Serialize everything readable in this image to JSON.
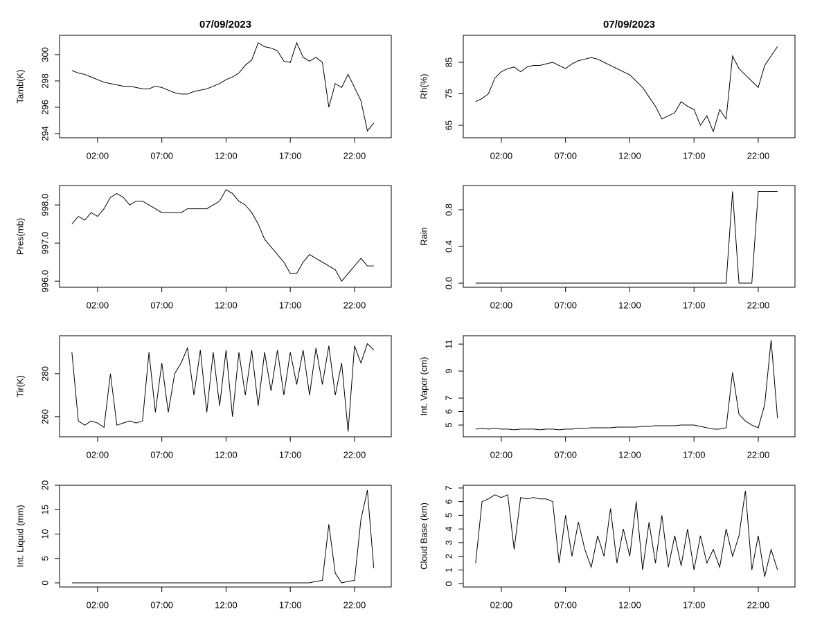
{
  "chart_data": [
    {
      "type": "line",
      "title": "07/09/2023",
      "ylabel": "Tamb(K)",
      "color": "#000000",
      "x": [
        0,
        0.5,
        1,
        1.5,
        2,
        2.5,
        3,
        3.5,
        4,
        4.5,
        5,
        5.5,
        6,
        6.5,
        7,
        7.5,
        8,
        8.5,
        9,
        9.5,
        10,
        10.5,
        11,
        11.5,
        12,
        12.5,
        13,
        13.5,
        14,
        14.5,
        15,
        15.5,
        16,
        16.5,
        17,
        17.5,
        18,
        18.5,
        19,
        19.5,
        20,
        20.5,
        21,
        21.5,
        22,
        22.5,
        23,
        23.5
      ],
      "values": [
        298.8,
        298.6,
        298.5,
        298.3,
        298.1,
        297.9,
        297.8,
        297.7,
        297.6,
        297.6,
        297.5,
        297.4,
        297.4,
        297.6,
        297.5,
        297.3,
        297.1,
        297.0,
        297.0,
        297.2,
        297.3,
        297.4,
        297.6,
        297.8,
        298.1,
        298.3,
        298.6,
        299.2,
        299.6,
        300.9,
        300.6,
        300.5,
        300.3,
        299.5,
        299.4,
        300.9,
        299.8,
        299.5,
        299.8,
        299.4,
        296.0,
        297.8,
        297.5,
        298.5,
        297.5,
        296.5,
        294.2,
        294.8
      ],
      "xlim": [
        -0.96,
        24.86
      ],
      "ylim": [
        293.68,
        301.47
      ],
      "xticks": [
        {
          "value": 2,
          "label": "02:00"
        },
        {
          "value": 7,
          "label": "07:00"
        },
        {
          "value": 12,
          "label": "12:00"
        },
        {
          "value": 17,
          "label": "17:00"
        },
        {
          "value": 22,
          "label": "22:00"
        }
      ],
      "yticks": [
        294,
        296,
        298,
        300
      ]
    },
    {
      "type": "line",
      "title": "07/09/2023",
      "ylabel": "Rh(%)",
      "color": "#000000",
      "x": [
        0,
        0.5,
        1,
        1.5,
        2,
        2.5,
        3,
        3.5,
        4,
        4.5,
        5,
        5.5,
        6,
        6.5,
        7,
        7.5,
        8,
        8.5,
        9,
        9.5,
        10,
        10.5,
        11,
        11.5,
        12,
        12.5,
        13,
        13.5,
        14,
        14.5,
        15,
        15.5,
        16,
        16.5,
        17,
        17.5,
        18,
        18.5,
        19,
        19.5,
        20,
        20.5,
        21,
        21.5,
        22,
        22.5,
        23,
        23.5
      ],
      "values": [
        72.5,
        73.5,
        75,
        80,
        82,
        83,
        83.5,
        82,
        83.5,
        84,
        84,
        84.5,
        85,
        84,
        83,
        84.5,
        85.5,
        86,
        86.5,
        86,
        85,
        84,
        83,
        82,
        81,
        79,
        77,
        74,
        71,
        67,
        68,
        69,
        72.5,
        71,
        70,
        65,
        68,
        63,
        70,
        67,
        87,
        83,
        81,
        79,
        77,
        84,
        87,
        90
      ],
      "xlim": [
        -0.96,
        24.86
      ],
      "ylim": [
        61.04,
        93.57
      ],
      "xticks": [
        {
          "value": 2,
          "label": "02:00"
        },
        {
          "value": 7,
          "label": "07:00"
        },
        {
          "value": 12,
          "label": "12:00"
        },
        {
          "value": 17,
          "label": "17:00"
        },
        {
          "value": 22,
          "label": "22:00"
        }
      ],
      "yticks": [
        65,
        75,
        85
      ]
    },
    {
      "type": "line",
      "ylabel": "Pres(mb)",
      "color": "#000000",
      "x": [
        0,
        0.5,
        1,
        1.5,
        2,
        2.5,
        3,
        3.5,
        4,
        4.5,
        5,
        5.5,
        6,
        6.5,
        7,
        7.5,
        8,
        8.5,
        9,
        9.5,
        10,
        10.5,
        11,
        11.5,
        12,
        12.5,
        13,
        13.5,
        14,
        14.5,
        15,
        15.5,
        16,
        16.5,
        17,
        17.5,
        18,
        18.5,
        19,
        19.5,
        20,
        20.5,
        21,
        21.5,
        22,
        22.5,
        23,
        23.5
      ],
      "values": [
        997.5,
        997.7,
        997.6,
        997.8,
        997.7,
        997.9,
        998.2,
        998.3,
        998.2,
        998.0,
        998.1,
        998.1,
        998.0,
        997.9,
        997.8,
        997.8,
        997.8,
        997.8,
        997.9,
        997.9,
        997.9,
        997.9,
        998.0,
        998.1,
        998.4,
        998.3,
        998.1,
        998.0,
        997.8,
        997.5,
        997.1,
        996.9,
        996.7,
        996.5,
        996.2,
        996.2,
        996.5,
        996.7,
        996.6,
        996.5,
        996.4,
        996.3,
        996.0,
        996.2,
        996.4,
        996.6,
        996.4,
        996.4
      ],
      "xlim": [
        -0.96,
        24.86
      ],
      "ylim": [
        995.84,
        998.51
      ],
      "xticks": [
        {
          "value": 2,
          "label": "02:00"
        },
        {
          "value": 7,
          "label": "07:00"
        },
        {
          "value": 12,
          "label": "12:00"
        },
        {
          "value": 17,
          "label": "17:00"
        },
        {
          "value": 22,
          "label": "22:00"
        }
      ],
      "yticks": [
        {
          "value": 996,
          "label": "996.0"
        },
        {
          "value": 997,
          "label": "997.0"
        },
        {
          "value": 998,
          "label": "998.0"
        }
      ]
    },
    {
      "type": "line",
      "ylabel": "Rain",
      "color": "#000000",
      "x": [
        0,
        0.5,
        1,
        1.5,
        2,
        2.5,
        3,
        3.5,
        4,
        4.5,
        5,
        5.5,
        6,
        6.5,
        7,
        7.5,
        8,
        8.5,
        9,
        9.5,
        10,
        10.5,
        11,
        11.5,
        12,
        12.5,
        13,
        13.5,
        14,
        14.5,
        15,
        15.5,
        16,
        16.5,
        17,
        17.5,
        18,
        18.5,
        19,
        19.5,
        20,
        20.5,
        21,
        21.5,
        22,
        22.5,
        23,
        23.5
      ],
      "values": [
        0,
        0,
        0,
        0,
        0,
        0,
        0,
        0,
        0,
        0,
        0,
        0,
        0,
        0,
        0,
        0,
        0,
        0,
        0,
        0,
        0,
        0,
        0,
        0,
        0,
        0,
        0,
        0,
        0,
        0,
        0,
        0,
        0,
        0,
        0,
        0,
        0,
        0,
        0,
        0,
        1,
        0,
        0,
        0,
        1,
        1,
        1,
        1
      ],
      "xlim": [
        -0.96,
        24.86
      ],
      "ylim": [
        -0.045,
        1.064
      ],
      "xticks": [
        {
          "value": 2,
          "label": "02:00"
        },
        {
          "value": 7,
          "label": "07:00"
        },
        {
          "value": 12,
          "label": "12:00"
        },
        {
          "value": 17,
          "label": "17:00"
        },
        {
          "value": 22,
          "label": "22:00"
        }
      ],
      "yticks": [
        {
          "value": 0,
          "label": "0.0"
        },
        0.4,
        0.8
      ]
    },
    {
      "type": "line",
      "ylabel": "Tir(K)",
      "color": "#000000",
      "x": [
        0,
        0.5,
        1,
        1.5,
        2,
        2.5,
        3,
        3.5,
        4,
        4.5,
        5,
        5.5,
        6,
        6.5,
        7,
        7.5,
        8,
        8.5,
        9,
        9.5,
        10,
        10.5,
        11,
        11.5,
        12,
        12.5,
        13,
        13.5,
        14,
        14.5,
        15,
        15.5,
        16,
        16.5,
        17,
        17.5,
        18,
        18.5,
        19,
        19.5,
        20,
        20.5,
        21,
        21.5,
        22,
        22.5,
        23,
        23.5
      ],
      "values": [
        290,
        258,
        256,
        258,
        257,
        255,
        280,
        256,
        257,
        258,
        257,
        258,
        290,
        262,
        285,
        262,
        280,
        285,
        292,
        270,
        291,
        262,
        290,
        265,
        291,
        260,
        290,
        270,
        291,
        265,
        290,
        272,
        291,
        270,
        290,
        275,
        291,
        270,
        292,
        275,
        293,
        270,
        285,
        253,
        293,
        285,
        294,
        291
      ],
      "xlim": [
        -0.96,
        24.86
      ],
      "ylim": [
        250.6,
        297.7
      ],
      "xticks": [
        {
          "value": 2,
          "label": "02:00"
        },
        {
          "value": 7,
          "label": "07:00"
        },
        {
          "value": 12,
          "label": "12:00"
        },
        {
          "value": 17,
          "label": "17:00"
        },
        {
          "value": 22,
          "label": "22:00"
        }
      ],
      "yticks": [
        260,
        280
      ]
    },
    {
      "type": "line",
      "ylabel": "Int. Vapor (cm)",
      "color": "#000000",
      "x": [
        0,
        0.5,
        1,
        1.5,
        2,
        2.5,
        3,
        3.5,
        4,
        4.5,
        5,
        5.5,
        6,
        6.5,
        7,
        7.5,
        8,
        8.5,
        9,
        9.5,
        10,
        10.5,
        11,
        11.5,
        12,
        12.5,
        13,
        13.5,
        14,
        14.5,
        15,
        15.5,
        16,
        16.5,
        17,
        17.5,
        18,
        18.5,
        19,
        19.5,
        20,
        20.5,
        21,
        21.5,
        22,
        22.5,
        23,
        23.5
      ],
      "values": [
        4.7,
        4.75,
        4.7,
        4.75,
        4.7,
        4.7,
        4.65,
        4.7,
        4.7,
        4.7,
        4.65,
        4.7,
        4.7,
        4.65,
        4.7,
        4.7,
        4.75,
        4.75,
        4.8,
        4.8,
        4.8,
        4.8,
        4.85,
        4.85,
        4.85,
        4.85,
        4.9,
        4.9,
        4.95,
        4.95,
        4.95,
        4.95,
        5.0,
        5.0,
        5.0,
        4.9,
        4.8,
        4.7,
        4.7,
        4.8,
        8.9,
        5.8,
        5.3,
        5.0,
        4.8,
        6.5,
        11.3,
        5.5
      ],
      "xlim": [
        -0.96,
        24.86
      ],
      "ylim": [
        4.13,
        11.62
      ],
      "xticks": [
        {
          "value": 2,
          "label": "02:00"
        },
        {
          "value": 7,
          "label": "07:00"
        },
        {
          "value": 12,
          "label": "12:00"
        },
        {
          "value": 17,
          "label": "17:00"
        },
        {
          "value": 22,
          "label": "22:00"
        }
      ],
      "yticks": [
        5,
        6,
        7,
        9,
        11
      ]
    },
    {
      "type": "line",
      "ylabel": "Int. Liquid (mm)",
      "color": "#000000",
      "x": [
        0,
        0.5,
        1,
        1.5,
        2,
        2.5,
        3,
        3.5,
        4,
        4.5,
        5,
        5.5,
        6,
        6.5,
        7,
        7.5,
        8,
        8.5,
        9,
        9.5,
        10,
        10.5,
        11,
        11.5,
        12,
        12.5,
        13,
        13.5,
        14,
        14.5,
        15,
        15.5,
        16,
        16.5,
        17,
        17.5,
        18,
        18.5,
        19,
        19.5,
        20,
        20.5,
        21,
        21.5,
        22,
        22.5,
        23,
        23.5
      ],
      "values": [
        0,
        0,
        0,
        0,
        0,
        0,
        0,
        0,
        0,
        0,
        0,
        0,
        0,
        0,
        0,
        0,
        0,
        0,
        0,
        0,
        0,
        0,
        0,
        0,
        0,
        0,
        0,
        0,
        0,
        0,
        0,
        0,
        0,
        0,
        0,
        0,
        0,
        0,
        0.3,
        0.5,
        12,
        2,
        0,
        0.3,
        0.5,
        13,
        19,
        3
      ],
      "xlim": [
        -0.96,
        24.86
      ],
      "ylim": [
        -0.85,
        20
      ],
      "xticks": [
        {
          "value": 2,
          "label": "02:00"
        },
        {
          "value": 7,
          "label": "07:00"
        },
        {
          "value": 12,
          "label": "12:00"
        },
        {
          "value": 17,
          "label": "17:00"
        },
        {
          "value": 22,
          "label": "22:00"
        }
      ],
      "yticks": [
        0,
        5,
        10,
        15,
        20
      ]
    },
    {
      "type": "line",
      "ylabel": "Cloud Base (km)",
      "color": "#000000",
      "x": [
        0,
        0.5,
        1,
        1.5,
        2,
        2.5,
        3,
        3.5,
        4,
        4.5,
        5,
        5.5,
        6,
        6.5,
        7,
        7.5,
        8,
        8.5,
        9,
        9.5,
        10,
        10.5,
        11,
        11.5,
        12,
        12.5,
        13,
        13.5,
        14,
        14.5,
        15,
        15.5,
        16,
        16.5,
        17,
        17.5,
        18,
        18.5,
        19,
        19.5,
        20,
        20.5,
        21,
        21.5,
        22,
        22.5,
        23,
        23.5
      ],
      "values": [
        1.5,
        6,
        6.2,
        6.5,
        6.3,
        6.5,
        2.5,
        6.3,
        6.2,
        6.3,
        6.2,
        6.2,
        6,
        1.5,
        5,
        2,
        4.5,
        2.5,
        1.2,
        3.5,
        2,
        5.5,
        1.5,
        4,
        2,
        6,
        1,
        4.5,
        1.5,
        5,
        1.2,
        3.5,
        1.3,
        4,
        1,
        3.5,
        1.5,
        2.5,
        1.2,
        4,
        2,
        3.5,
        6.8,
        1,
        3.5,
        0.5,
        2.5,
        1
      ],
      "xlim": [
        -0.96,
        24.86
      ],
      "ylim": [
        -0.25,
        7.2
      ],
      "xticks": [
        {
          "value": 2,
          "label": "02:00"
        },
        {
          "value": 7,
          "label": "07:00"
        },
        {
          "value": 12,
          "label": "12:00"
        },
        {
          "value": 17,
          "label": "17:00"
        },
        {
          "value": 22,
          "label": "22:00"
        }
      ],
      "yticks": [
        0,
        1,
        2,
        3,
        4,
        5,
        6,
        7
      ]
    }
  ]
}
